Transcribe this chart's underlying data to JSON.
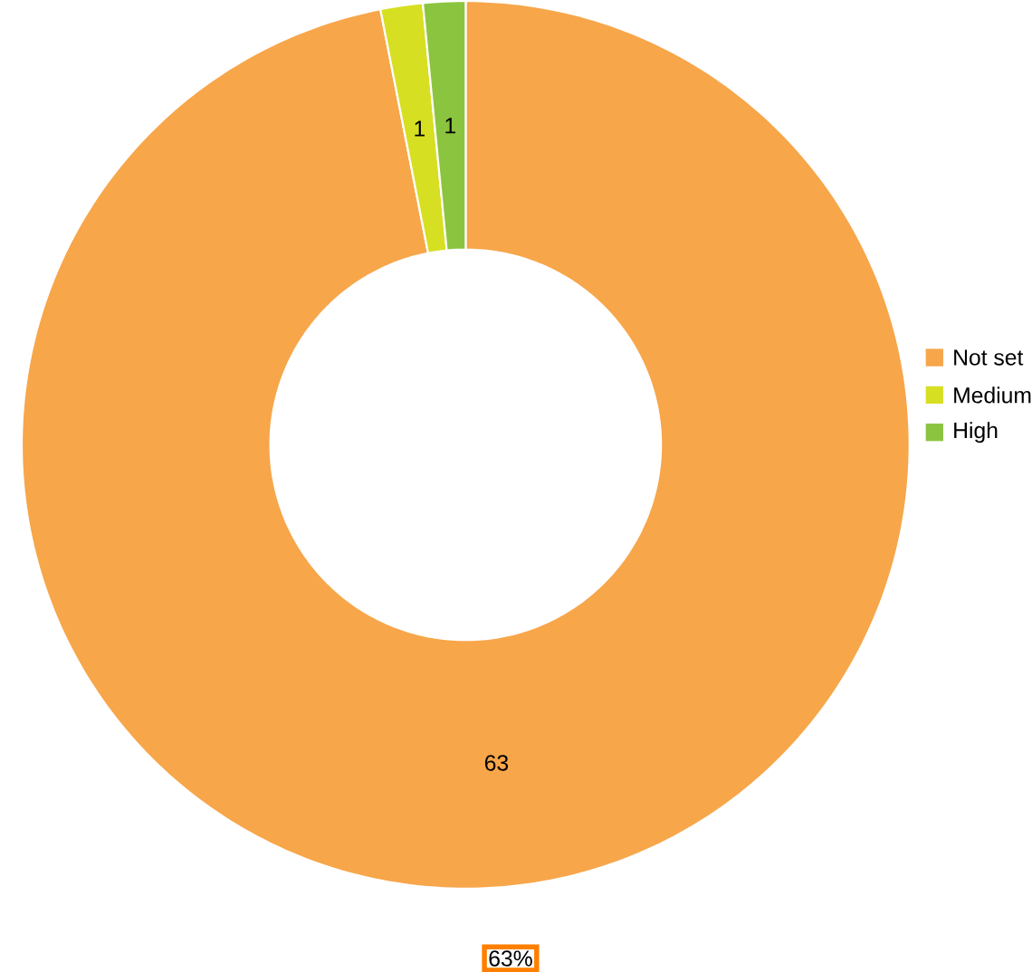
{
  "chart_data": {
    "type": "donut",
    "categories": [
      "Not set",
      "Medium",
      "High"
    ],
    "values": [
      63,
      1,
      1
    ],
    "colors": [
      "#f7a64a",
      "#d7df23",
      "#8bc43f"
    ],
    "data_labels": true,
    "legend": "right",
    "annotations": [
      "63%"
    ]
  }
}
